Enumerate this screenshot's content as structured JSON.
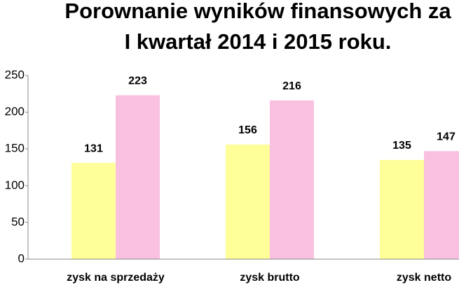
{
  "chart_data": {
    "type": "bar",
    "title": [
      "Porownanie wyników finansowych za",
      "I kwartał 2014 i 2015 roku."
    ],
    "categories": [
      "zysk na sprzedaży",
      "zysk brutto",
      "zysk netto"
    ],
    "series": [
      {
        "color": "#ffff99",
        "values": [
          131,
          156,
          135
        ]
      },
      {
        "color": "#f9c0e0",
        "values": [
          223,
          216,
          147
        ]
      }
    ],
    "ylim": [
      0,
      250
    ],
    "yticks": [
      0,
      50,
      100,
      150,
      200,
      250
    ],
    "grid": false,
    "data_labels": true
  }
}
